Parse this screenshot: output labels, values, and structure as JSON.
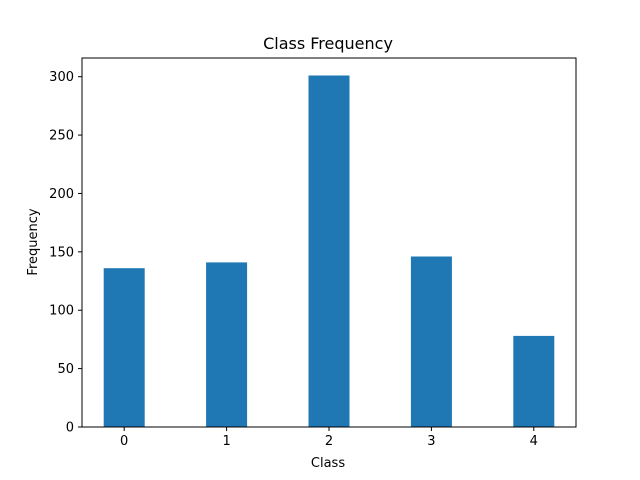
{
  "chart_data": {
    "type": "bar",
    "title": "Class Frequency",
    "xlabel": "Class",
    "ylabel": "Frequency",
    "categories": [
      "0",
      "1",
      "2",
      "3",
      "4"
    ],
    "values": [
      136,
      141,
      301,
      146,
      78
    ],
    "yticks": [
      0,
      50,
      100,
      150,
      200,
      250,
      300
    ],
    "ylim": [
      0,
      316
    ],
    "bar_color": "#1f77b4",
    "grid": false,
    "legend": "none"
  }
}
